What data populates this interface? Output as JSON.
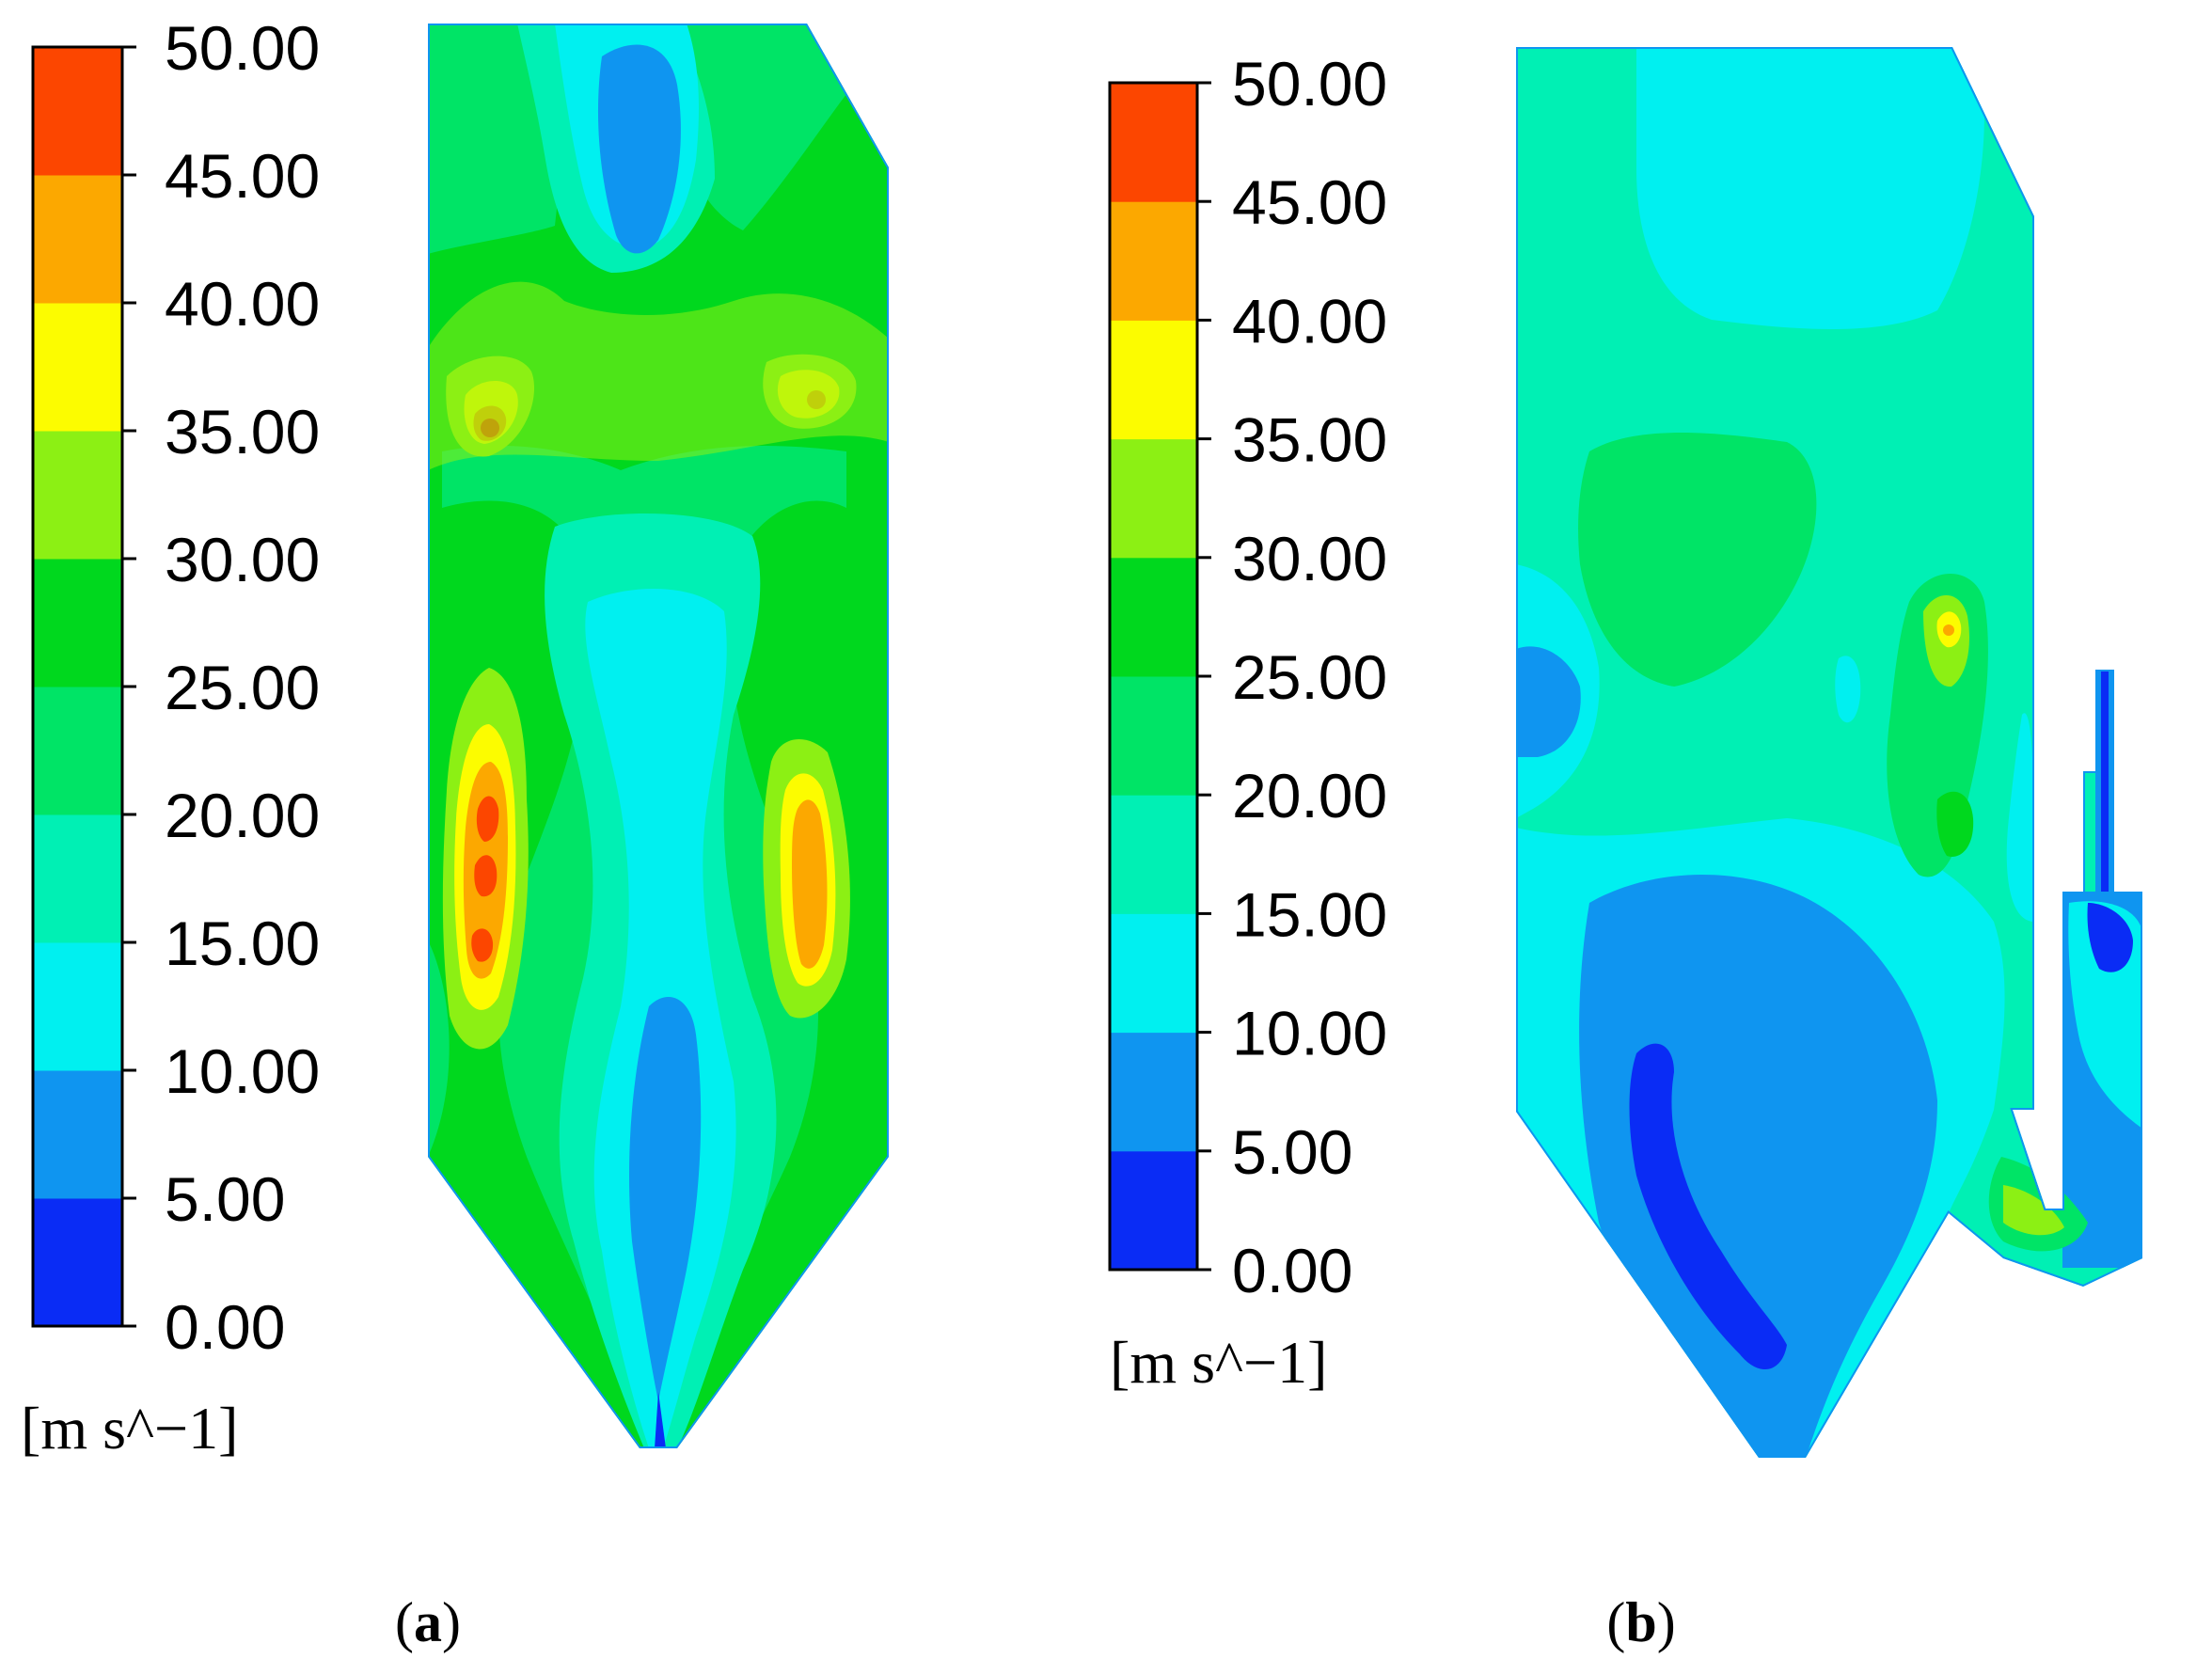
{
  "colorbar": {
    "unit": "[m s^−1]",
    "ticks": [
      "0.00",
      "5.00",
      "10.00",
      "15.00",
      "20.00",
      "25.00",
      "30.00",
      "35.00",
      "40.00",
      "45.00",
      "50.00"
    ],
    "bands": [
      {
        "range": "0-5",
        "color": "#0a2cf5"
      },
      {
        "range": "5-10",
        "color": "#0f95f0"
      },
      {
        "range": "10-15",
        "color": "#00f0f0"
      },
      {
        "range": "15-20",
        "color": "#00f0b4"
      },
      {
        "range": "20-25",
        "color": "#00e466"
      },
      {
        "range": "25-30",
        "color": "#00d81e"
      },
      {
        "range": "30-35",
        "color": "#8cf014"
      },
      {
        "range": "35-40",
        "color": "#fcfc00"
      },
      {
        "range": "40-45",
        "color": "#fca800"
      },
      {
        "range": "45-50",
        "color": "#fc4600"
      }
    ]
  },
  "panels": [
    {
      "id": "a",
      "caption_open": "(",
      "caption_letter": "a",
      "caption_close": ")"
    },
    {
      "id": "b",
      "caption_open": "(",
      "caption_letter": "b",
      "caption_close": ")"
    }
  ]
}
